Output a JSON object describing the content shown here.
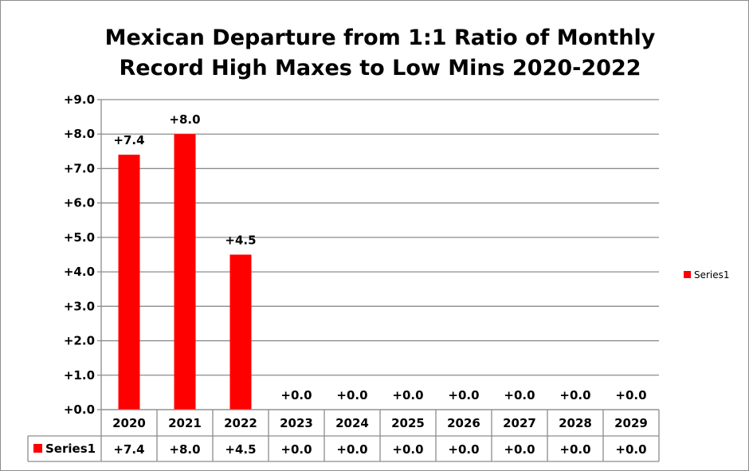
{
  "chart_data": {
    "type": "bar",
    "title_lines": [
      "Mexican Departure from 1:1 Ratio of Monthly",
      "Record High Maxes to Low Mins 2020-2022"
    ],
    "categories": [
      "2020",
      "2021",
      "2022",
      "2023",
      "2024",
      "2025",
      "2026",
      "2027",
      "2028",
      "2029"
    ],
    "series": [
      {
        "name": "Series1",
        "values": [
          7.4,
          8.0,
          4.5,
          0.0,
          0.0,
          0.0,
          0.0,
          0.0,
          0.0,
          0.0
        ],
        "labels": [
          "+7.4",
          "+8.0",
          "+4.5",
          "+0.0",
          "+0.0",
          "+0.0",
          "+0.0",
          "+0.0",
          "+0.0",
          "+0.0"
        ],
        "color": "#ff0000"
      }
    ],
    "y_ticks": [
      0,
      1,
      2,
      3,
      4,
      5,
      6,
      7,
      8,
      9
    ],
    "y_tick_labels": [
      "+0.0",
      "+1.0",
      "+2.0",
      "+3.0",
      "+4.0",
      "+5.0",
      "+6.0",
      "+7.0",
      "+8.0",
      "+9.0"
    ],
    "ylim": [
      0,
      9
    ],
    "grid": true,
    "legend": {
      "position": "right",
      "entries": [
        "Series1"
      ]
    },
    "data_table": true
  },
  "colors": {
    "bar": "#ff0000",
    "grid": "#8c8c8c",
    "border": "#8c8c8c"
  }
}
